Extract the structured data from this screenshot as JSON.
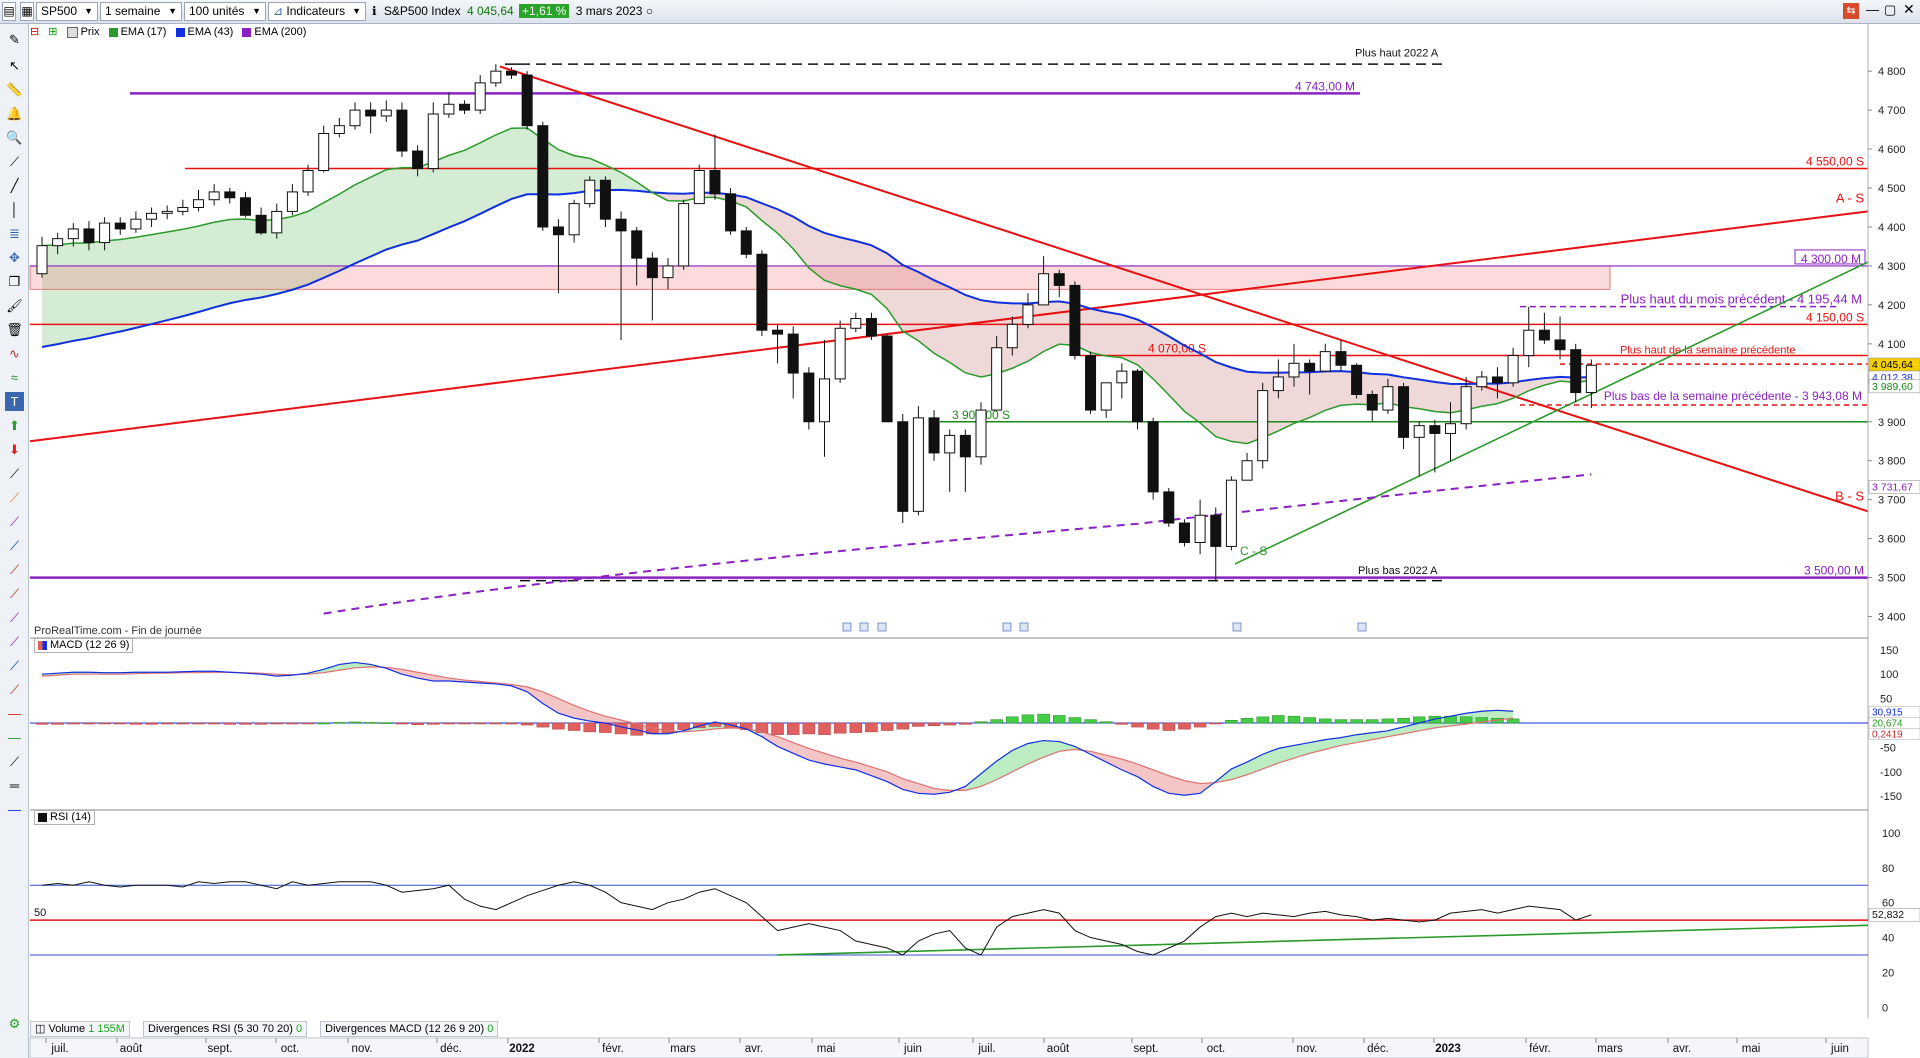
{
  "toolbar": {
    "symbol": "SP500",
    "period": "1 semaine",
    "units": "100 unités",
    "indicators": "Indicateurs",
    "instrument": "S&P500 Index",
    "last_price": "4 045,64",
    "change": "+1,61 %",
    "date": "3 mars 2023"
  },
  "legend": {
    "price": "Prix",
    "ema17": "EMA (17)",
    "ema43": "EMA (43)",
    "ema200": "EMA (200)"
  },
  "colors": {
    "up_candle": "#ffffff",
    "down_candle": "#111111",
    "ema17": "#2a9a2a",
    "ema43": "#1030e0",
    "ema200": "#8a22c2",
    "resistance": "#e81010",
    "support_purple": "#8a22c2",
    "macd_pos": "#44cc44",
    "macd_neg": "#e06060"
  },
  "source_note": "ProRealTime.com - Fin de journée",
  "bottom": {
    "volume_label": "Volume",
    "volume_value": "1 155M",
    "div_rsi": "Divergences RSI (5 30 70 20)",
    "div_rsi_value": "0",
    "div_macd": "Divergences MACD (12 26 9 20)",
    "div_macd_value": "0"
  },
  "chart_data": [
    {
      "type": "candlestick",
      "title": "S&P500 Index",
      "ylim": [
        3350,
        4880
      ],
      "yticks": [
        3400,
        3500,
        3600,
        3700,
        3800,
        3900,
        4000,
        4100,
        4200,
        4300,
        4400,
        4500,
        4600,
        4700,
        4800
      ],
      "ytick_labels": [
        "3 400",
        "3 500",
        "3 600",
        "3 700",
        "3 800",
        "3 900",
        "4 000",
        "4 100",
        "4 200",
        "4 300",
        "4 400",
        "4 500",
        "4 600",
        "4 700",
        "4 800"
      ],
      "x_labels": [
        "juil.",
        "août",
        "sept.",
        "oct.",
        "nov.",
        "déc.",
        "2022",
        "févr.",
        "mars",
        "avr.",
        "mai",
        "juin",
        "juil.",
        "août",
        "sept.",
        "oct.",
        "nov.",
        "déc.",
        "2023",
        "févr.",
        "mars",
        "avr.",
        "mai",
        "juin"
      ],
      "close": [
        4352,
        4370,
        4395,
        4360,
        4410,
        4395,
        4420,
        4435,
        4440,
        4450,
        4470,
        4490,
        4475,
        4430,
        4385,
        4440,
        4490,
        4545,
        4640,
        4660,
        4700,
        4685,
        4700,
        4595,
        4550,
        4690,
        4715,
        4700,
        4770,
        4800,
        4790,
        4660,
        4400,
        4380,
        4460,
        4520,
        4420,
        4390,
        4320,
        4270,
        4300,
        4460,
        4545,
        4485,
        4390,
        4330,
        4135,
        4125,
        4025,
        3900,
        4010,
        4140,
        4165,
        4120,
        3900,
        3670,
        3910,
        3820,
        3865,
        3810,
        3930,
        4090,
        4150,
        4200,
        4280,
        4250,
        4070,
        3930,
        4000,
        4030,
        3900,
        3720,
        3640,
        3590,
        3660,
        3580,
        3750,
        3800,
        3980,
        4015,
        4050,
        4030,
        4080,
        4045,
        3970,
        3930,
        3990,
        3860,
        3890,
        3870,
        3895,
        3990,
        4015,
        4000,
        4070,
        4135,
        4110,
        4085,
        3975,
        4045
      ],
      "open": [
        4280,
        4352,
        4370,
        4395,
        4360,
        4410,
        4395,
        4420,
        4435,
        4440,
        4450,
        4470,
        4490,
        4475,
        4430,
        4385,
        4440,
        4490,
        4545,
        4640,
        4660,
        4700,
        4685,
        4700,
        4595,
        4550,
        4690,
        4715,
        4700,
        4770,
        4800,
        4790,
        4660,
        4400,
        4380,
        4460,
        4520,
        4420,
        4390,
        4320,
        4270,
        4300,
        4460,
        4545,
        4485,
        4390,
        4330,
        4135,
        4125,
        4025,
        3900,
        4010,
        4140,
        4165,
        4120,
        3900,
        3670,
        3910,
        3820,
        3865,
        3810,
        3930,
        4090,
        4150,
        4200,
        4280,
        4250,
        4070,
        3930,
        4000,
        4030,
        3900,
        3720,
        3640,
        3590,
        3660,
        3580,
        3750,
        3800,
        3980,
        4015,
        4050,
        4030,
        4080,
        4045,
        3970,
        3930,
        3990,
        3860,
        3890,
        3870,
        3895,
        3990,
        4015,
        4000,
        4070,
        4135,
        4110,
        4085,
        3975
      ],
      "high": [
        4375,
        4385,
        4410,
        4415,
        4425,
        4425,
        4440,
        4450,
        4455,
        4470,
        4495,
        4510,
        4500,
        4490,
        4450,
        4460,
        4510,
        4560,
        4660,
        4680,
        4720,
        4720,
        4725,
        4720,
        4610,
        4720,
        4745,
        4725,
        4790,
        4818,
        4810,
        4800,
        4670,
        4420,
        4470,
        4530,
        4530,
        4440,
        4400,
        4335,
        4320,
        4470,
        4560,
        4637,
        4500,
        4400,
        4340,
        4150,
        4145,
        4040,
        4110,
        4160,
        4180,
        4180,
        4125,
        3920,
        3940,
        3930,
        3880,
        3880,
        3950,
        4120,
        4170,
        4230,
        4325,
        4290,
        4260,
        4080,
        4000,
        4050,
        4035,
        3910,
        3730,
        3650,
        3700,
        3680,
        3760,
        3820,
        4000,
        4060,
        4100,
        4060,
        4100,
        4110,
        4050,
        3980,
        4010,
        4000,
        3900,
        3905,
        3950,
        4015,
        4030,
        4040,
        4090,
        4195,
        4180,
        4170,
        4100,
        4060
      ],
      "low": [
        4270,
        4330,
        4350,
        4340,
        4340,
        4380,
        4385,
        4400,
        4420,
        4430,
        4440,
        4455,
        4460,
        4425,
        4380,
        4370,
        4430,
        4480,
        4540,
        4630,
        4650,
        4640,
        4670,
        4580,
        4530,
        4540,
        4680,
        4690,
        4690,
        4760,
        4780,
        4650,
        4390,
        4230,
        4360,
        4450,
        4400,
        4110,
        4250,
        4160,
        4240,
        4290,
        4460,
        4470,
        4380,
        4320,
        4120,
        4050,
        3960,
        3880,
        3810,
        4000,
        4130,
        4110,
        3900,
        3640,
        3660,
        3800,
        3720,
        3720,
        3790,
        3930,
        4070,
        4140,
        4200,
        4220,
        4060,
        3920,
        3910,
        3960,
        3880,
        3700,
        3630,
        3580,
        3560,
        3490,
        3570,
        3750,
        3780,
        3960,
        3990,
        3970,
        4030,
        4030,
        3960,
        3900,
        3920,
        3830,
        3760,
        3770,
        3800,
        3880,
        3980,
        3960,
        3990,
        4040,
        4100,
        4060,
        3950,
        3935
      ]
    },
    {
      "type": "macd",
      "title": "MACD (12 26 9)",
      "ylim": [
        -170,
        170
      ],
      "yticks": [
        -150,
        -100,
        -50,
        0,
        50,
        100,
        150
      ],
      "current_values": [
        "30,915",
        "20,674",
        "0,2419"
      ],
      "hist": [
        -4,
        -4,
        -3,
        -3,
        -2,
        -3,
        -4,
        -4,
        -3,
        -3,
        -3,
        -3,
        -4,
        -4,
        -4,
        -3,
        -2,
        -2,
        0,
        2,
        3,
        2,
        1,
        -3,
        -5,
        -4,
        -3,
        -3,
        -2,
        -2,
        -3,
        -6,
        -12,
        -18,
        -22,
        -26,
        -28,
        -32,
        -36,
        -32,
        -28,
        -20,
        -14,
        -10,
        -14,
        -20,
        -28,
        -34,
        -34,
        -32,
        -34,
        -30,
        -28,
        -26,
        -22,
        -18,
        -10,
        -8,
        -6,
        -4,
        4,
        10,
        18,
        24,
        26,
        22,
        16,
        10,
        4,
        -4,
        -12,
        -18,
        -22,
        -18,
        -12,
        -2,
        8,
        14,
        18,
        22,
        20,
        16,
        12,
        10,
        10,
        10,
        12,
        14,
        18,
        20,
        20,
        18,
        16,
        14,
        12
      ],
      "macd": [
        100,
        102,
        104,
        104,
        103,
        103,
        104,
        104,
        104,
        105,
        106,
        106,
        104,
        102,
        100,
        96,
        98,
        102,
        110,
        120,
        124,
        120,
        112,
        100,
        92,
        86,
        86,
        84,
        82,
        80,
        76,
        64,
        40,
        20,
        10,
        4,
        0,
        -8,
        -14,
        -22,
        -22,
        -16,
        -6,
        2,
        -4,
        -12,
        -28,
        -48,
        -62,
        -76,
        -84,
        -90,
        -96,
        -108,
        -120,
        -136,
        -144,
        -146,
        -142,
        -130,
        -104,
        -78,
        -56,
        -42,
        -36,
        -38,
        -48,
        -64,
        -80,
        -96,
        -110,
        -130,
        -144,
        -148,
        -144,
        -120,
        -94,
        -80,
        -64,
        -52,
        -46,
        -40,
        -34,
        -30,
        -24,
        -20,
        -16,
        -8,
        0,
        8,
        14,
        20,
        24,
        26,
        24
      ],
      "signal": [
        96,
        98,
        100,
        100,
        100,
        100,
        101,
        102,
        102,
        103,
        103,
        104,
        104,
        103,
        102,
        100,
        99,
        100,
        103,
        108,
        113,
        115,
        114,
        110,
        104,
        98,
        92,
        88,
        85,
        82,
        79,
        74,
        64,
        50,
        36,
        24,
        14,
        6,
        -2,
        -10,
        -16,
        -18,
        -16,
        -12,
        -10,
        -12,
        -18,
        -28,
        -40,
        -52,
        -62,
        -72,
        -80,
        -90,
        -100,
        -114,
        -124,
        -134,
        -138,
        -138,
        -130,
        -116,
        -100,
        -84,
        -70,
        -58,
        -54,
        -58,
        -66,
        -74,
        -84,
        -96,
        -108,
        -118,
        -124,
        -122,
        -116,
        -106,
        -94,
        -82,
        -72,
        -62,
        -54,
        -46,
        -40,
        -34,
        -28,
        -22,
        -16,
        -10,
        -6,
        -2,
        2,
        6,
        10
      ]
    },
    {
      "type": "line",
      "title": "RSI (14)",
      "ylim": [
        -5,
        112
      ],
      "yticks": [
        0,
        20,
        40,
        60,
        80,
        100
      ],
      "level_label": "50",
      "current_value": "52,832",
      "values": [
        70,
        71,
        70,
        72,
        70,
        69,
        70,
        70,
        70,
        69,
        72,
        71,
        72,
        72,
        70,
        68,
        72,
        70,
        71,
        72,
        72,
        72,
        70,
        66,
        67,
        68,
        70,
        62,
        58,
        56,
        60,
        64,
        67,
        70,
        72,
        70,
        66,
        60,
        58,
        56,
        60,
        62,
        66,
        68,
        64,
        60,
        52,
        44,
        46,
        48,
        46,
        44,
        38,
        36,
        34,
        30,
        38,
        42,
        44,
        34,
        30,
        46,
        52,
        54,
        56,
        54,
        44,
        40,
        38,
        36,
        32,
        30,
        34,
        38,
        46,
        52,
        54,
        52,
        54,
        53,
        52,
        54,
        55,
        53,
        52,
        50,
        51,
        50,
        49,
        50,
        54,
        55,
        56,
        54,
        56,
        58,
        57,
        56,
        50,
        53
      ]
    }
  ],
  "annotations": {
    "plus_haut_2022": "Plus haut 2022 A",
    "plus_bas_2022": "Plus bas 2022 A",
    "m4743": "4 743,00 M",
    "s4550": "4 550,00 S",
    "as_label": "A - S",
    "m4300": "4 300,00 M",
    "haut_mois": "Plus haut du mois précédent - 4 195,44 M",
    "s4150": "4 150,00 S",
    "haut_semaine": "Plus haut de la semaine précédente",
    "s4070": "4 070,00 S",
    "bas_semaine": "Plus bas de la semaine précédente - 3 943,08 M",
    "s3900": "3 900,00 S",
    "bs_label": "B - S",
    "cs_label": "C - S",
    "m3500": "3 500,00 M",
    "tag_last": "4 045,64",
    "tag_ema43": "4 012,38",
    "tag_ema17": "3 989,60",
    "tag_ema200": "3 731,67"
  }
}
